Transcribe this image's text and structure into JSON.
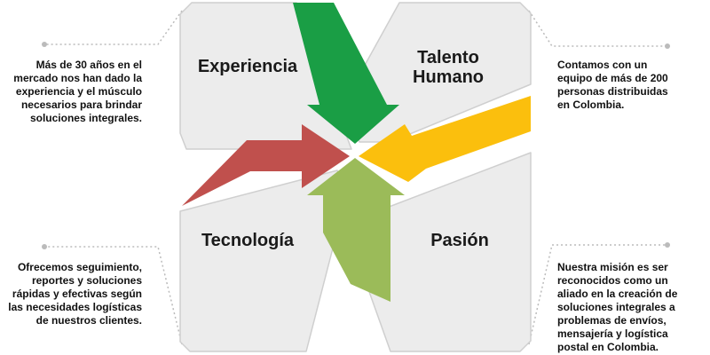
{
  "quadrants": {
    "experiencia": {
      "title": "Experiencia"
    },
    "talento": {
      "title": "Talento Humano"
    },
    "tecnologia": {
      "title": "Tecnología"
    },
    "pasion": {
      "title": "Pasión"
    }
  },
  "descriptions": {
    "experiencia": "Más de 30 años en el mercado nos han dado la experiencia y el músculo necesarios para brindar soluciones integrales.",
    "talento": "Contamos con un equipo de más de 200 personas distribuidas en Colombia.",
    "tecnologia": "Ofrecemos seguimiento, reportes y soluciones rápidas y efectivas según las necesidades logísticas de nuestros clientes.",
    "pasion": "Nuestra misión es ser reconocidos como un aliado en la creación de soluciones integrales a problemas de envíos, mensajería y logística postal en Colombia."
  },
  "colors": {
    "green": "#1a9e45",
    "yellow": "#fbbf0d",
    "red": "#c0504d",
    "lightgreen": "#9bbb59",
    "tile": "#ececec",
    "tileBorder": "#cfcfcf",
    "connector": "#bbbbbb"
  }
}
